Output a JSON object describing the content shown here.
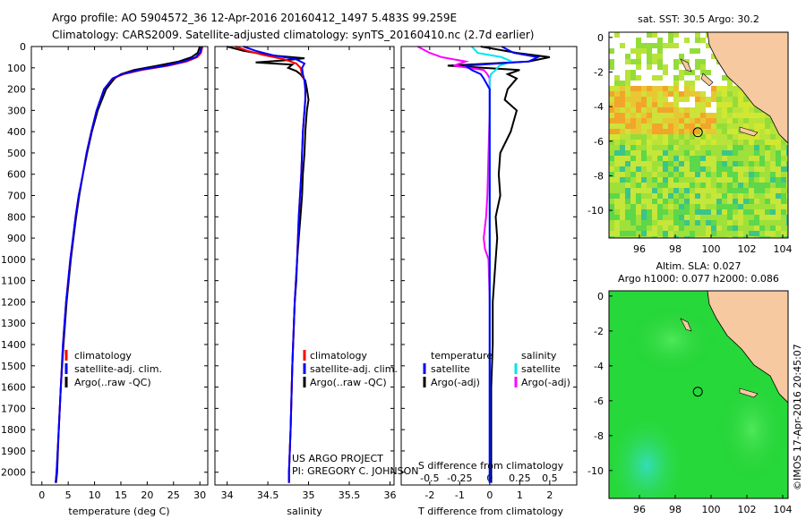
{
  "header": {
    "line1": "Argo profile: AO 5904572_36 12-Apr-2016 20160412_1497 5.483S 99.259E",
    "line2": "Climatology: CARS2009. Satellite-adjusted climatology: synTS_20160410.nc (2.7d earlier)"
  },
  "colors": {
    "red": "#ff0000",
    "blue": "#0000ff",
    "black": "#000000",
    "cyan": "#00e5ee",
    "magenta": "#ff00ff",
    "land": "#f7c9a0",
    "ocean_green": "#22dd33"
  },
  "chart_data": [
    {
      "type": "line",
      "id": "temperature",
      "xlabel": "temperature (deg C)",
      "xlim": [
        -2,
        31.5
      ],
      "ylim": [
        0,
        2060
      ],
      "x_ticks": [
        0,
        5,
        10,
        15,
        20,
        25,
        30
      ],
      "y_ticks": [
        0,
        100,
        200,
        300,
        400,
        500,
        600,
        700,
        800,
        900,
        1000,
        1100,
        1200,
        1300,
        1400,
        1500,
        1600,
        1700,
        1800,
        1900,
        2000
      ],
      "legend": [
        "climatology",
        "satellite-adj. clim.",
        "Argo(..raw -QC)"
      ],
      "series": [
        {
          "name": "climatology",
          "color": "red",
          "depth": [
            0,
            30,
            50,
            70,
            90,
            110,
            130,
            150,
            200,
            300,
            400,
            500,
            600,
            700,
            800,
            900,
            1000,
            1200,
            1400,
            1600,
            1800,
            2000,
            2050
          ],
          "values": [
            30.5,
            30.2,
            29.5,
            27.5,
            24,
            19,
            15.5,
            13.5,
            11.8,
            10.4,
            9.4,
            8.5,
            7.8,
            7.0,
            6.4,
            5.9,
            5.4,
            4.6,
            4.0,
            3.6,
            3.2,
            2.8,
            2.6
          ]
        },
        {
          "name": "satellite-adj. clim.",
          "color": "blue",
          "depth": [
            0,
            30,
            50,
            70,
            90,
            110,
            130,
            150,
            200,
            300,
            400,
            500,
            600,
            700,
            800,
            900,
            1000,
            1200,
            1400,
            1600,
            1800,
            2000,
            2050
          ],
          "values": [
            30.4,
            30,
            29.2,
            27,
            23.5,
            18.5,
            15.2,
            13.4,
            11.8,
            10.4,
            9.4,
            8.5,
            7.8,
            7.0,
            6.4,
            5.9,
            5.4,
            4.6,
            4.0,
            3.6,
            3.2,
            2.8,
            2.6
          ]
        },
        {
          "name": "Argo(..raw -QC)",
          "color": "black",
          "depth": [
            0,
            30,
            50,
            70,
            90,
            110,
            130,
            150,
            200,
            300,
            400,
            500,
            600,
            700,
            800,
            900,
            1000,
            1200,
            1400,
            1600,
            1800,
            2000,
            2050
          ],
          "values": [
            30.0,
            29.6,
            28.4,
            26,
            22,
            17.5,
            15,
            13.8,
            12.2,
            10.6,
            9.5,
            8.6,
            7.8,
            7.1,
            6.5,
            6.0,
            5.5,
            4.7,
            4.1,
            3.6,
            3.2,
            2.9,
            2.7
          ]
        }
      ]
    },
    {
      "type": "line",
      "id": "salinity",
      "xlabel": "salinity",
      "xlim": [
        33.85,
        36.05
      ],
      "ylim": [
        0,
        2060
      ],
      "x_ticks": [
        34,
        34.5,
        35,
        35.5,
        36
      ],
      "legend": [
        "climatology",
        "satellite-adj. clim.",
        "Argo(..raw -QC)"
      ],
      "annotation": [
        "US ARGO PROJECT",
        "PI: GREGORY C. JOHNSON"
      ],
      "series": [
        {
          "name": "climatology",
          "color": "red",
          "depth": [
            0,
            20,
            40,
            60,
            80,
            100,
            130,
            160,
            200,
            250,
            300,
            400,
            500,
            600,
            800,
            1000,
            1200,
            1500,
            1800,
            2000,
            2050
          ],
          "values": [
            34.1,
            34.25,
            34.45,
            34.7,
            34.85,
            34.9,
            34.92,
            34.95,
            34.96,
            34.96,
            34.95,
            34.93,
            34.92,
            34.91,
            34.88,
            34.86,
            34.83,
            34.8,
            34.78,
            34.76,
            34.76
          ]
        },
        {
          "name": "satellite-adj. clim.",
          "color": "blue",
          "depth": [
            0,
            20,
            40,
            60,
            80,
            100,
            130,
            160,
            200,
            250,
            300,
            400,
            500,
            600,
            800,
            1000,
            1200,
            1500,
            1800,
            2000,
            2050
          ],
          "values": [
            34.2,
            34.35,
            34.55,
            34.85,
            34.95,
            34.92,
            34.93,
            34.95,
            34.96,
            34.96,
            34.95,
            34.93,
            34.92,
            34.91,
            34.88,
            34.86,
            34.83,
            34.8,
            34.78,
            34.76,
            34.76
          ]
        },
        {
          "name": "Argo(..raw -QC)",
          "color": "black",
          "depth": [
            0,
            20,
            40,
            55,
            65,
            75,
            85,
            100,
            115,
            130,
            160,
            200,
            250,
            300,
            400,
            500,
            600,
            700,
            800,
            900,
            1000,
            1100,
            1200,
            1500,
            1800,
            2000,
            2050
          ],
          "values": [
            34.0,
            34.2,
            34.5,
            34.95,
            34.7,
            34.35,
            34.8,
            34.75,
            34.85,
            34.9,
            34.96,
            34.98,
            35.0,
            34.98,
            34.96,
            34.95,
            34.93,
            34.92,
            34.9,
            34.88,
            34.86,
            34.85,
            34.83,
            34.8,
            34.78,
            34.76,
            34.76
          ]
        }
      ]
    },
    {
      "type": "line",
      "id": "differences",
      "xlabel": "T difference from climatology",
      "xlabel_top": "S difference from climatology",
      "t_ticks": [
        -2,
        -1,
        0,
        1,
        2
      ],
      "s_ticks": [
        -0.5,
        -0.25,
        0,
        0.25,
        0.5
      ],
      "s_tick_labels": [
        "-0.5",
        "-0.25",
        "0",
        "0.25",
        "0.5"
      ],
      "t_xlim": [
        -2.95,
        2.9
      ],
      "ylim": [
        0,
        2060
      ],
      "legend_titles": [
        "temperature",
        "salinity"
      ],
      "legend": [
        "satellite",
        "Argo(-adj)",
        "satellite",
        "Argo(-adj)"
      ],
      "series": [
        {
          "name": "T satellite",
          "color": "blue",
          "depth": [
            0,
            30,
            50,
            70,
            90,
            110,
            130,
            150,
            200,
            300,
            500,
            800,
            1000,
            1500,
            2000,
            2050
          ],
          "values": [
            0.4,
            0.8,
            1.6,
            1.3,
            -0.8,
            -0.6,
            -0.3,
            -0.2,
            0.0,
            0.0,
            0.0,
            0.0,
            0.0,
            0.0,
            0.0,
            0.0
          ]
        },
        {
          "name": "T Argo(-adj)",
          "color": "black",
          "depth": [
            0,
            30,
            50,
            70,
            90,
            110,
            130,
            150,
            200,
            250,
            300,
            400,
            500,
            600,
            700,
            800,
            900,
            1000,
            1200,
            1400,
            1600,
            1800,
            2000,
            2050
          ],
          "values": [
            -0.3,
            0.9,
            2.0,
            1.3,
            -1.4,
            1.0,
            0.6,
            0.9,
            0.6,
            0.5,
            0.9,
            0.7,
            0.35,
            0.3,
            0.35,
            0.2,
            0.25,
            0.2,
            0.1,
            0.1,
            0.05,
            0.05,
            0.05,
            0.05
          ]
        },
        {
          "name": "S satellite",
          "color": "cyan",
          "depth": [
            0,
            30,
            50,
            70,
            90,
            110,
            130,
            150,
            200,
            300,
            500,
            800,
            1000,
            1500,
            2000,
            2050
          ],
          "values": [
            -0.15,
            -0.1,
            0.1,
            0.18,
            0.08,
            0.05,
            0.01,
            0.0,
            0.0,
            0.0,
            0.0,
            0.0,
            0.0,
            0.0,
            0.0,
            0.0
          ]
        },
        {
          "name": "S Argo(-adj)",
          "color": "magenta",
          "depth": [
            0,
            30,
            50,
            70,
            90,
            110,
            130,
            150,
            200,
            300,
            500,
            700,
            800,
            900,
            950,
            1000,
            1200,
            1500,
            2000,
            2050
          ],
          "values": [
            -0.6,
            -0.5,
            -0.4,
            -0.2,
            -0.3,
            -0.05,
            -0.02,
            0.0,
            0.0,
            0.0,
            -0.01,
            -0.02,
            -0.03,
            -0.05,
            -0.04,
            -0.01,
            0.0,
            0.0,
            0.0,
            0.0
          ]
        }
      ]
    },
    {
      "type": "heatmap",
      "id": "sst_map",
      "title": "sat. SST: 30.5 Argo: 30.2",
      "xlim": [
        94.3,
        104.3
      ],
      "ylim": [
        -11.6,
        0.3
      ],
      "x_ticks": [
        96,
        98,
        100,
        102,
        104
      ],
      "y_ticks": [
        0,
        -2,
        -4,
        -6,
        -8,
        -10
      ],
      "argo_position": {
        "lon": 99.259,
        "lat": -5.483
      }
    },
    {
      "type": "heatmap",
      "id": "sla_map",
      "title": [
        "Altim. SLA: 0.027",
        "Argo h1000: 0.077 h2000: 0.086"
      ],
      "xlim": [
        94.3,
        104.3
      ],
      "ylim": [
        -11.6,
        0.3
      ],
      "x_ticks": [
        96,
        98,
        100,
        102,
        104
      ],
      "y_ticks": [
        0,
        -2,
        -4,
        -6,
        -8,
        -10
      ],
      "argo_position": {
        "lon": 99.259,
        "lat": -5.483
      }
    }
  ],
  "footer": {
    "stamp": "©IMOS 17-Apr-2016 20:45:07"
  }
}
